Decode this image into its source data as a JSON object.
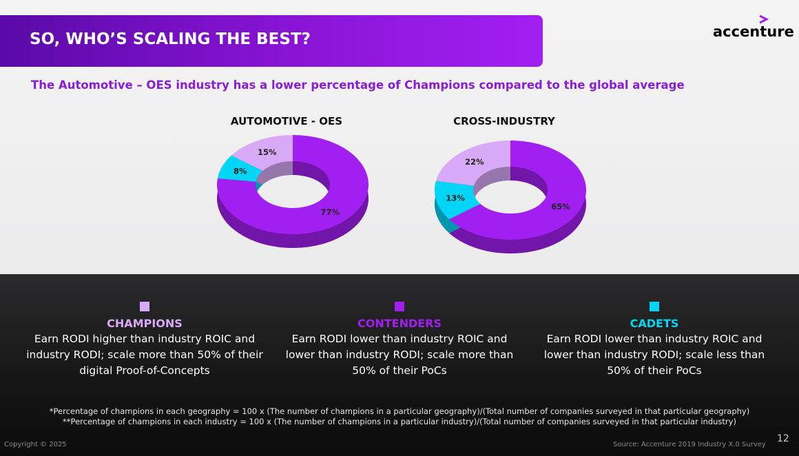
{
  "header": {
    "title": "SO, WHO’S SCALING THE BEST?",
    "logo": "accenture"
  },
  "subtitle": "The Automotive – OES industry has a lower percentage of Champions compared to the global average",
  "chart_data": [
    {
      "type": "pie",
      "title": "AUTOMOTIVE - OES",
      "values": [
        77,
        8,
        15
      ],
      "value_labels": [
        "77%",
        "8%",
        "15%"
      ],
      "colors": [
        "#a21ff2",
        "#00d5f5",
        "#d8a9f6"
      ],
      "donut": true
    },
    {
      "type": "pie",
      "title": "CROSS-INDUSTRY",
      "values": [
        65,
        13,
        22
      ],
      "value_labels": [
        "65%",
        "13%",
        "22%"
      ],
      "colors": [
        "#a21ff2",
        "#00d5f5",
        "#d8a9f6"
      ],
      "donut": true
    }
  ],
  "legend": [
    {
      "label": "CHAMPIONS",
      "color": "#d8a9f6",
      "description": "Earn RODI higher than industry ROIC and industry RODI; scale more than 50% of their digital Proof-of-Concepts"
    },
    {
      "label": "CONTENDERS",
      "color": "#a21ff2",
      "description": "Earn RODI lower than industry ROIC and lower than industry RODI; scale more than 50% of their PoCs"
    },
    {
      "label": "CADETS",
      "color": "#00d5f5",
      "description": "Earn RODI lower than industry ROIC and lower than industry RODI; scale less than 50% of their PoCs"
    }
  ],
  "footnotes": [
    "*Percentage of champions in each geography = 100 x (The number of champions in a particular geography)/(Total number of companies surveyed in that particular geography)",
    "**Percentage of champions in each industry = 100 x (The number of champions in a particular industry)/(Total number of companies surveyed in that particular industry)"
  ],
  "footer": {
    "copyright": "Copyright © 2025",
    "source": "Source: Accenture 2019 Industry X.0 Survey",
    "page": "12"
  }
}
